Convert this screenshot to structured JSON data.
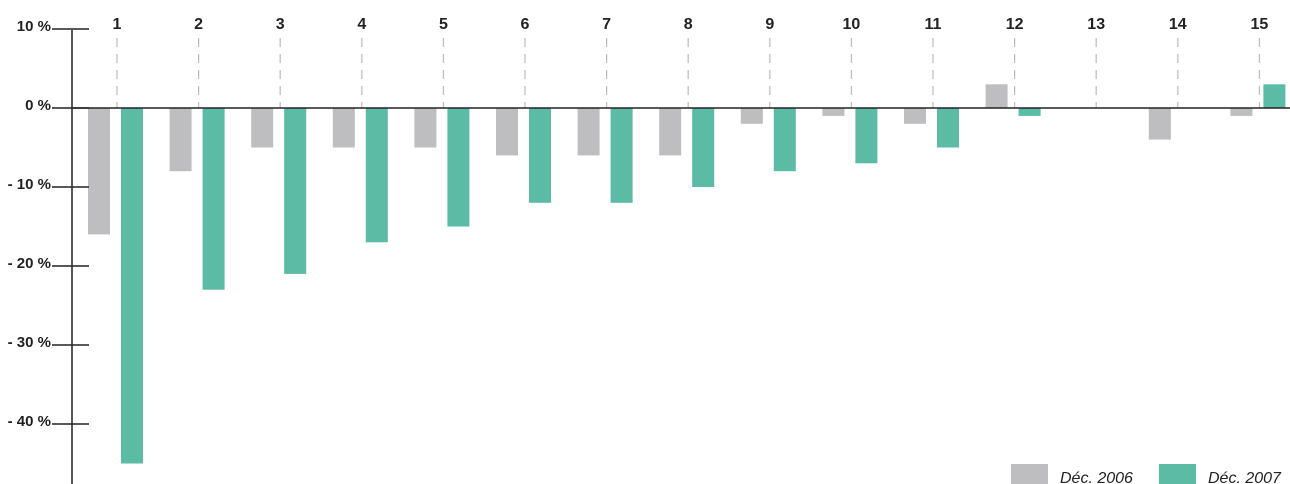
{
  "chart_data": {
    "type": "bar",
    "categories": [
      "1",
      "2",
      "3",
      "4",
      "5",
      "6",
      "7",
      "8",
      "9",
      "10",
      "11",
      "12",
      "13",
      "14",
      "15"
    ],
    "series": [
      {
        "name": "Déc. 2006",
        "color": "#bebec0",
        "values": [
          -16,
          -8,
          -5,
          -5,
          -5,
          -6,
          -6,
          -6,
          -2,
          -1,
          -2,
          3,
          0,
          -4,
          -1
        ]
      },
      {
        "name": "Déc. 2007",
        "color": "#5bbba4",
        "values": [
          -45,
          -23,
          -21,
          -17,
          -15,
          -12,
          -12,
          -10,
          -8,
          -7,
          -5,
          -1,
          0,
          0,
          3
        ]
      }
    ],
    "yticks": [
      10,
      0,
      -10,
      -20,
      -30,
      -40
    ],
    "ytick_labels": [
      "10 %",
      "0 %",
      "- 10 %",
      "- 20 %",
      "- 30 %",
      "- 40 %"
    ],
    "ylim": [
      -47,
      10
    ],
    "title": "",
    "xlabel": "",
    "ylabel": "",
    "legend_position": "bottom-right",
    "grid": "dashed vertical guides per category"
  }
}
